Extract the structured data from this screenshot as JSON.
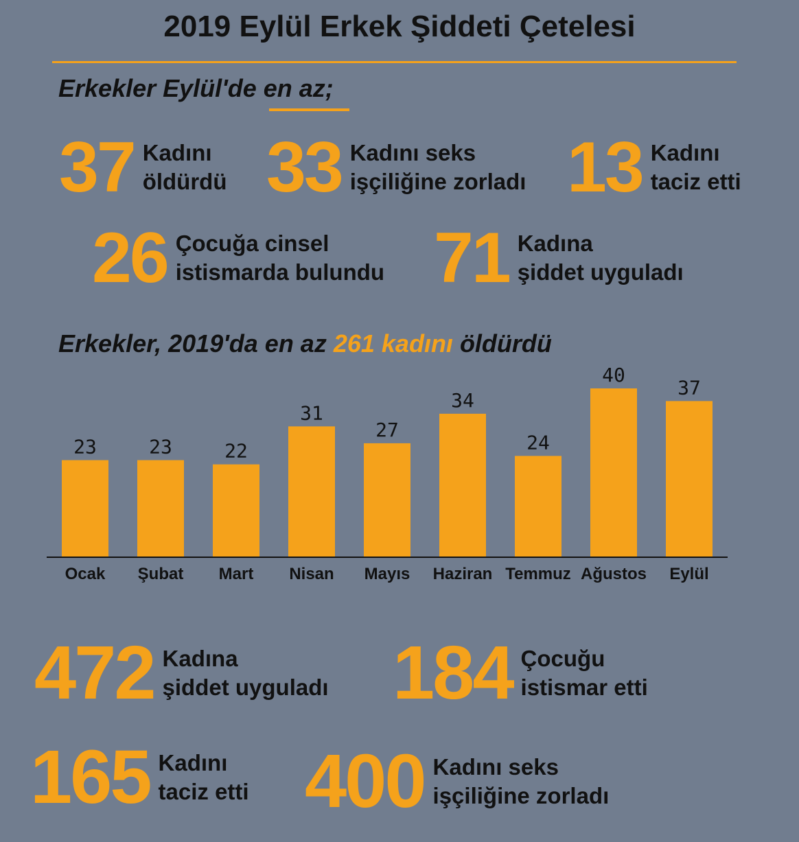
{
  "title": "2019 Eylül Erkek Şiddeti Çetelesi",
  "september": {
    "heading_pre": "Erkekler Eylül'de ",
    "heading_emph": "en az;",
    "stats": [
      {
        "num": "37",
        "line1": "Kadını",
        "line2": "öldürdü"
      },
      {
        "num": "33",
        "line1": "Kadını seks",
        "line2": "işçiliğine zorladı"
      },
      {
        "num": "13",
        "line1": "Kadını",
        "line2": "taciz etti"
      },
      {
        "num": "26",
        "line1": "Çocuğa cinsel",
        "line2": "istismarda bulundu"
      },
      {
        "num": "71",
        "line1": "Kadına",
        "line2": "şiddet uyguladı"
      }
    ]
  },
  "year": {
    "heading_pre": "Erkekler, 2019'da en az ",
    "heading_hl": "261 kadını",
    "heading_post": " öldürdü",
    "stats": [
      {
        "num": "472",
        "line1": "Kadına",
        "line2": "şiddet uyguladı"
      },
      {
        "num": "184",
        "line1": "Çocuğu",
        "line2": "istismar etti"
      },
      {
        "num": "165",
        "line1": "Kadını",
        "line2": "taciz etti"
      },
      {
        "num": "400",
        "line1": "Kadını seks",
        "line2": "işçiliğine zorladı"
      }
    ]
  },
  "colors": {
    "background": "#717d8f",
    "accent": "#f5a21b",
    "text": "#111111"
  },
  "chart_data": {
    "type": "bar",
    "categories": [
      "Ocak",
      "Şubat",
      "Mart",
      "Nisan",
      "Mayıs",
      "Haziran",
      "Temmuz",
      "Ağustos",
      "Eylül"
    ],
    "values": [
      23,
      23,
      22,
      31,
      27,
      34,
      24,
      40,
      37
    ],
    "ylim": [
      0,
      40
    ],
    "grid": false,
    "legend": "none"
  }
}
